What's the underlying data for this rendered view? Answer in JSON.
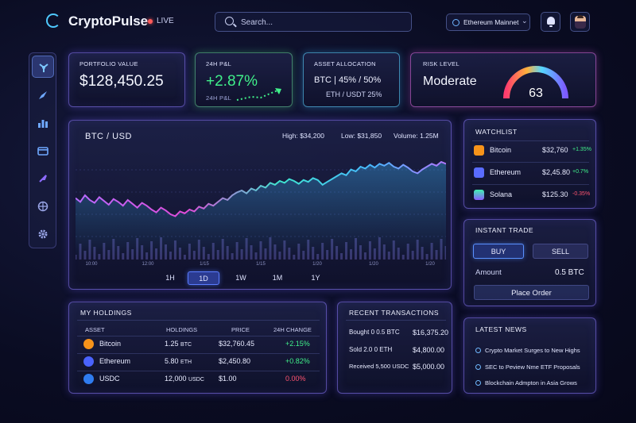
{
  "header": {
    "brand": "CryptoPulse",
    "live": "LIVE",
    "search_placeholder": "Search...",
    "network": "Ethereum Mainnet"
  },
  "sidebar": {
    "items": [
      "share-icon",
      "rocket-icon",
      "bar-chart-icon",
      "wallet-icon",
      "rocket-launch-icon",
      "globe-icon",
      "gear-icon"
    ]
  },
  "stats": {
    "portfolio": {
      "label": "PORTFOLIO VALUE",
      "value": "$128,450.25"
    },
    "pnl": {
      "label": "24H P&L",
      "value": "+2.87%",
      "sub": "24H P&L"
    },
    "allocation": {
      "label": "ASSET ALLOCATION",
      "line1_a": "BTC",
      "line1_b": "45%",
      "line1_c": "50%",
      "line2_a": "ETH",
      "line2_b": "USDT",
      "line2_c": "25%"
    },
    "risk": {
      "label": "RISK LEVEL",
      "value": "Moderate",
      "score": "63",
      "score_fraction": 0.63
    }
  },
  "chart": {
    "pair": "BTC / USD",
    "high": "High: $34,200",
    "low": "Low: $31,850",
    "volume": "Volume: 1.25M",
    "timeframes": [
      "1H",
      "1D",
      "1W",
      "1M",
      "1Y"
    ],
    "active_timeframe": "1D",
    "x_ticks": [
      "10:00",
      "12:00",
      "1/15",
      "1/15",
      "1/20",
      "1/20",
      "1/20"
    ]
  },
  "chart_data": {
    "type": "line",
    "title": "BTC / USD",
    "xlabel": "",
    "ylabel": "",
    "values": [
      52,
      48,
      55,
      50,
      47,
      53,
      49,
      45,
      51,
      48,
      44,
      50,
      46,
      42,
      47,
      44,
      40,
      37,
      42,
      39,
      35,
      33,
      38,
      36,
      40,
      38,
      43,
      41,
      46,
      44,
      48,
      52,
      50,
      55,
      58,
      60,
      57,
      62,
      60,
      65,
      63,
      68,
      66,
      70,
      68,
      72,
      70,
      67,
      71,
      69,
      73,
      71,
      66,
      69,
      72,
      75,
      78,
      76,
      82,
      80,
      85,
      83,
      87,
      84,
      88,
      86,
      89,
      85,
      83,
      87,
      84,
      80,
      78,
      82,
      85,
      88,
      86,
      90,
      88
    ],
    "ylim": [
      0,
      100
    ],
    "grid": true
  },
  "watchlist": {
    "title": "WATCHLIST",
    "rows": [
      {
        "name": "Bitcoin",
        "price": "$32,760",
        "change": "+1.35%"
      },
      {
        "name": "Ethereum",
        "price": "$2,45.80",
        "change": "+0.7%"
      },
      {
        "name": "Solana",
        "price": "$125.30",
        "change": "-0.35%"
      }
    ]
  },
  "trade": {
    "title": "INSTANT TRADE",
    "buy": "BUY",
    "sell": "SELL",
    "amount_label": "Amount",
    "amount_value": "0.5 BTC",
    "place": "Place Order"
  },
  "holdings": {
    "title": "MY HOLDINGS",
    "headers": [
      "ASSET",
      "HOLDINGS",
      "PRICE",
      "24H CHANGE"
    ],
    "rows": [
      {
        "name": "Bitcoin",
        "qty": "1.25",
        "unit": "BTC",
        "price": "$32,760.45",
        "change": "+2.15%"
      },
      {
        "name": "Ethereum",
        "qty": "5.80",
        "unit": "ETH",
        "price": "$2,450.80",
        "change": "+0.82%"
      },
      {
        "name": "USDC",
        "qty": "12,000",
        "unit": "USDC",
        "price": "$1.00",
        "change": "0.00%"
      }
    ]
  },
  "transactions": {
    "title": "RECENT TRANSACTIONS",
    "rows": [
      {
        "desc": "Bought 0 0.5 BTC",
        "amount": "$16,375.20"
      },
      {
        "desc": "Sold 2.0 0 ETH",
        "amount": "$4,800.00"
      },
      {
        "desc": "Received 5,500 USDC",
        "amount": "$5,000.00"
      }
    ]
  },
  "news": {
    "title": "LATEST NEWS",
    "items": [
      "Crypto Market Surges to New Highs",
      "SEC to Peview Nme ETF Proposals",
      "Blockchain Admpton in Asia Grows"
    ]
  },
  "colors": {
    "accent": "#5a7cff",
    "positive": "#40f08a",
    "negative": "#ff5470",
    "cyan": "#4fc9ff"
  }
}
